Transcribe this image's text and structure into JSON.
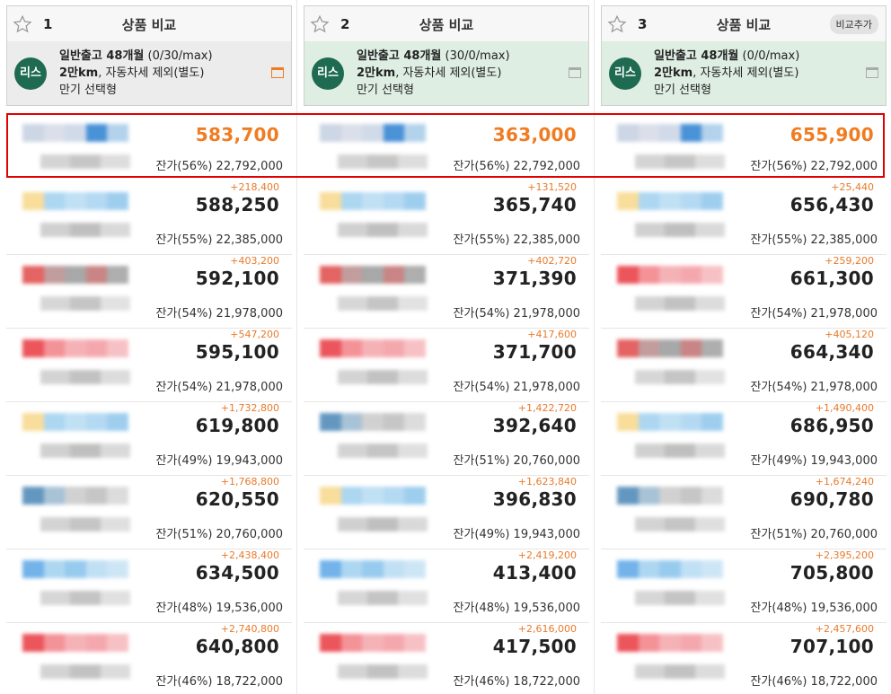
{
  "columns": [
    {
      "num": "1",
      "title": "상품 비교",
      "add_label": "",
      "badge": "리스",
      "line1_bold": "일반출고 48개월",
      "line1_light": " (0/30/max)",
      "line2_bold": "2만km",
      "line2_light": ", 자동차세 제외(별도)",
      "line3": "만기 선택형",
      "icon_color": "#f07c22",
      "rows": [
        {
          "diff": "",
          "price": "583,700",
          "resid": "잔가(56%) 22,792,000",
          "thumb": [
            "#c4cfe0",
            "#d5dae6",
            "#c8d4e6",
            "#2b7fd0",
            "#a6cbe8"
          ],
          "sub": [
            "#cdcdcd",
            "#bdbdbd",
            "#d8d8d8"
          ]
        },
        {
          "diff": "+218,400",
          "price": "588,250",
          "resid": "잔가(55%) 22,385,000",
          "thumb": [
            "#f7d88a",
            "#9fd0ef",
            "#b6dbf3",
            "#a8d3f0",
            "#8ec6ec"
          ],
          "sub": [
            "#c8c8c8",
            "#b5b5b5",
            "#d3d3d3"
          ]
        },
        {
          "diff": "+403,200",
          "price": "592,100",
          "resid": "잔가(54%) 21,978,000",
          "thumb": [
            "#e04848",
            "#b88c8c",
            "#999",
            "#c07070",
            "#a0a0a0"
          ],
          "sub": [
            "#d0d0d0",
            "#bbbbbb",
            "#dddddd"
          ]
        },
        {
          "diff": "+547,200",
          "price": "595,100",
          "resid": "잔가(54%) 21,978,000",
          "thumb": [
            "#e8383f",
            "#f27f86",
            "#f4a5aa",
            "#f39aa0",
            "#f6b6ba"
          ],
          "sub": [
            "#cccccc",
            "#b8b8b8",
            "#d6d6d6"
          ]
        },
        {
          "diff": "+1,732,800",
          "price": "619,800",
          "resid": "잔가(49%) 19,943,000",
          "thumb": [
            "#f7d88a",
            "#9fd0ef",
            "#b6dbf3",
            "#a8d3f0",
            "#8ec6ec"
          ],
          "sub": [
            "#c8c8c8",
            "#b5b5b5",
            "#d3d3d3"
          ]
        },
        {
          "diff": "+1,768,800",
          "price": "620,550",
          "resid": "잔가(51%) 20,760,000",
          "thumb": [
            "#4a86b5",
            "#9ab8cf",
            "#c9c9c9",
            "#bdbdbd",
            "#d6d6d6"
          ],
          "sub": [
            "#cccccc",
            "#bbbbbb",
            "#dadada"
          ]
        },
        {
          "diff": "+2,438,400",
          "price": "634,500",
          "resid": "잔가(48%) 19,536,000",
          "thumb": [
            "#5aa6e6",
            "#9fd0ef",
            "#86c2ec",
            "#b6dbf3",
            "#c5e2f5"
          ],
          "sub": [
            "#cfcfcf",
            "#bababa",
            "#dbdbdb"
          ]
        },
        {
          "diff": "+2,740,800",
          "price": "640,800",
          "resid": "잔가(46%) 18,722,000",
          "thumb": [
            "#e8383f",
            "#f27f86",
            "#f4a5aa",
            "#f39aa0",
            "#f6b6ba"
          ],
          "sub": [
            "#cccccc",
            "#b8b8b8",
            "#d6d6d6"
          ]
        }
      ]
    },
    {
      "num": "2",
      "title": "상품 비교",
      "add_label": "",
      "badge": "리스",
      "line1_bold": "일반출고 48개월",
      "line1_light": " (30/0/max)",
      "line2_bold": "2만km",
      "line2_light": ", 자동차세 제외(별도)",
      "line3": "만기 선택형",
      "icon_color": "#aaaaaa",
      "rows": [
        {
          "diff": "",
          "price": "363,000",
          "resid": "잔가(56%) 22,792,000",
          "thumb": [
            "#c4cfe0",
            "#d5dae6",
            "#c8d4e6",
            "#2b7fd0",
            "#a6cbe8"
          ],
          "sub": [
            "#cdcdcd",
            "#bdbdbd",
            "#d8d8d8"
          ]
        },
        {
          "diff": "+131,520",
          "price": "365,740",
          "resid": "잔가(55%) 22,385,000",
          "thumb": [
            "#f7d88a",
            "#9fd0ef",
            "#b6dbf3",
            "#a8d3f0",
            "#8ec6ec"
          ],
          "sub": [
            "#c8c8c8",
            "#b5b5b5",
            "#d3d3d3"
          ]
        },
        {
          "diff": "+402,720",
          "price": "371,390",
          "resid": "잔가(54%) 21,978,000",
          "thumb": [
            "#e04848",
            "#b88c8c",
            "#999",
            "#c07070",
            "#a0a0a0"
          ],
          "sub": [
            "#d0d0d0",
            "#bbbbbb",
            "#dddddd"
          ]
        },
        {
          "diff": "+417,600",
          "price": "371,700",
          "resid": "잔가(54%) 21,978,000",
          "thumb": [
            "#e8383f",
            "#f27f86",
            "#f4a5aa",
            "#f39aa0",
            "#f6b6ba"
          ],
          "sub": [
            "#cccccc",
            "#b8b8b8",
            "#d6d6d6"
          ]
        },
        {
          "diff": "+1,422,720",
          "price": "392,640",
          "resid": "잔가(51%) 20,760,000",
          "thumb": [
            "#4a86b5",
            "#9ab8cf",
            "#c9c9c9",
            "#bdbdbd",
            "#d6d6d6"
          ],
          "sub": [
            "#cccccc",
            "#bbbbbb",
            "#dadada"
          ]
        },
        {
          "diff": "+1,623,840",
          "price": "396,830",
          "resid": "잔가(49%) 19,943,000",
          "thumb": [
            "#f7d88a",
            "#9fd0ef",
            "#b6dbf3",
            "#a8d3f0",
            "#8ec6ec"
          ],
          "sub": [
            "#c8c8c8",
            "#b5b5b5",
            "#d3d3d3"
          ]
        },
        {
          "diff": "+2,419,200",
          "price": "413,400",
          "resid": "잔가(48%) 19,536,000",
          "thumb": [
            "#5aa6e6",
            "#9fd0ef",
            "#86c2ec",
            "#b6dbf3",
            "#c5e2f5"
          ],
          "sub": [
            "#cfcfcf",
            "#bababa",
            "#dbdbdb"
          ]
        },
        {
          "diff": "+2,616,000",
          "price": "417,500",
          "resid": "잔가(46%) 18,722,000",
          "thumb": [
            "#e8383f",
            "#f27f86",
            "#f4a5aa",
            "#f39aa0",
            "#f6b6ba"
          ],
          "sub": [
            "#cccccc",
            "#b8b8b8",
            "#d6d6d6"
          ]
        }
      ]
    },
    {
      "num": "3",
      "title": "상품 비교",
      "add_label": "비교추가",
      "badge": "리스",
      "line1_bold": "일반출고 48개월",
      "line1_light": " (0/0/max)",
      "line2_bold": "2만km",
      "line2_light": ", 자동차세 제외(별도)",
      "line3": "만기 선택형",
      "icon_color": "#aaaaaa",
      "rows": [
        {
          "diff": "",
          "price": "655,900",
          "resid": "잔가(56%) 22,792,000",
          "thumb": [
            "#c4cfe0",
            "#d5dae6",
            "#c8d4e6",
            "#2b7fd0",
            "#a6cbe8"
          ],
          "sub": [
            "#cdcdcd",
            "#bdbdbd",
            "#d8d8d8"
          ]
        },
        {
          "diff": "+25,440",
          "price": "656,430",
          "resid": "잔가(55%) 22,385,000",
          "thumb": [
            "#f7d88a",
            "#9fd0ef",
            "#b6dbf3",
            "#a8d3f0",
            "#8ec6ec"
          ],
          "sub": [
            "#c8c8c8",
            "#b5b5b5",
            "#d3d3d3"
          ]
        },
        {
          "diff": "+259,200",
          "price": "661,300",
          "resid": "잔가(54%) 21,978,000",
          "thumb": [
            "#e8383f",
            "#f27f86",
            "#f4a5aa",
            "#f39aa0",
            "#f6b6ba"
          ],
          "sub": [
            "#cccccc",
            "#b8b8b8",
            "#d6d6d6"
          ]
        },
        {
          "diff": "+405,120",
          "price": "664,340",
          "resid": "잔가(54%) 21,978,000",
          "thumb": [
            "#e04848",
            "#b88c8c",
            "#999",
            "#c07070",
            "#a0a0a0"
          ],
          "sub": [
            "#d0d0d0",
            "#bbbbbb",
            "#dddddd"
          ]
        },
        {
          "diff": "+1,490,400",
          "price": "686,950",
          "resid": "잔가(49%) 19,943,000",
          "thumb": [
            "#f7d88a",
            "#9fd0ef",
            "#b6dbf3",
            "#a8d3f0",
            "#8ec6ec"
          ],
          "sub": [
            "#c8c8c8",
            "#b5b5b5",
            "#d3d3d3"
          ]
        },
        {
          "diff": "+1,674,240",
          "price": "690,780",
          "resid": "잔가(51%) 20,760,000",
          "thumb": [
            "#4a86b5",
            "#9ab8cf",
            "#c9c9c9",
            "#bdbdbd",
            "#d6d6d6"
          ],
          "sub": [
            "#cccccc",
            "#bbbbbb",
            "#dadada"
          ]
        },
        {
          "diff": "+2,395,200",
          "price": "705,800",
          "resid": "잔가(48%) 19,536,000",
          "thumb": [
            "#5aa6e6",
            "#9fd0ef",
            "#86c2ec",
            "#b6dbf3",
            "#c5e2f5"
          ],
          "sub": [
            "#cfcfcf",
            "#bababa",
            "#dbdbdb"
          ]
        },
        {
          "diff": "+2,457,600",
          "price": "707,100",
          "resid": "잔가(46%) 18,722,000",
          "thumb": [
            "#e8383f",
            "#f27f86",
            "#f4a5aa",
            "#f39aa0",
            "#f6b6ba"
          ],
          "sub": [
            "#cccccc",
            "#b8b8b8",
            "#d6d6d6"
          ]
        }
      ]
    }
  ],
  "colors": {
    "accent": "#f07c22",
    "badge": "#1f6b52",
    "highlight": "#e00000"
  },
  "icons": {
    "favorite": "star-icon",
    "window": "window-icon"
  }
}
